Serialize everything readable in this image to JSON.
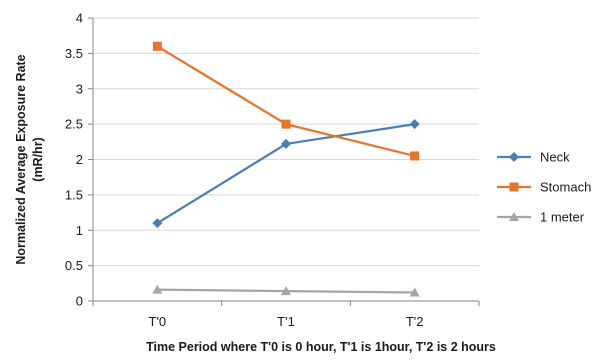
{
  "chart_data": {
    "type": "line",
    "title": "",
    "xlabel": "Time Period where T'0 is 0 hour, T'1 is 1hour, T'2 is 2 hours",
    "ylabel": "Normalized Average Exposure Rate (mR/hr)",
    "ylabel_lines": [
      "Normalized Average Exposure Rate",
      "(mR/hr)"
    ],
    "categories": [
      "T'0",
      "T'1",
      "T'2"
    ],
    "ylim": [
      0,
      4
    ],
    "yticks": [
      0,
      0.5,
      1,
      1.5,
      2,
      2.5,
      3,
      3.5,
      4
    ],
    "ytick_labels": [
      "0",
      "0.5",
      "1",
      "1.5",
      "2",
      "2.5",
      "3",
      "3.5",
      "4"
    ],
    "grid": "horizontal",
    "legend_position": "right",
    "series": [
      {
        "name": "Neck",
        "values": [
          1.1,
          2.22,
          2.5
        ],
        "color": "#4a7ebb",
        "marker": "diamond"
      },
      {
        "name": "Stomach",
        "values": [
          3.6,
          2.5,
          2.05
        ],
        "color": "#e8742a",
        "marker": "square"
      },
      {
        "name": "1 meter",
        "values": [
          0.16,
          0.14,
          0.12
        ],
        "color": "#a5a5a5",
        "marker": "triangle"
      }
    ]
  }
}
